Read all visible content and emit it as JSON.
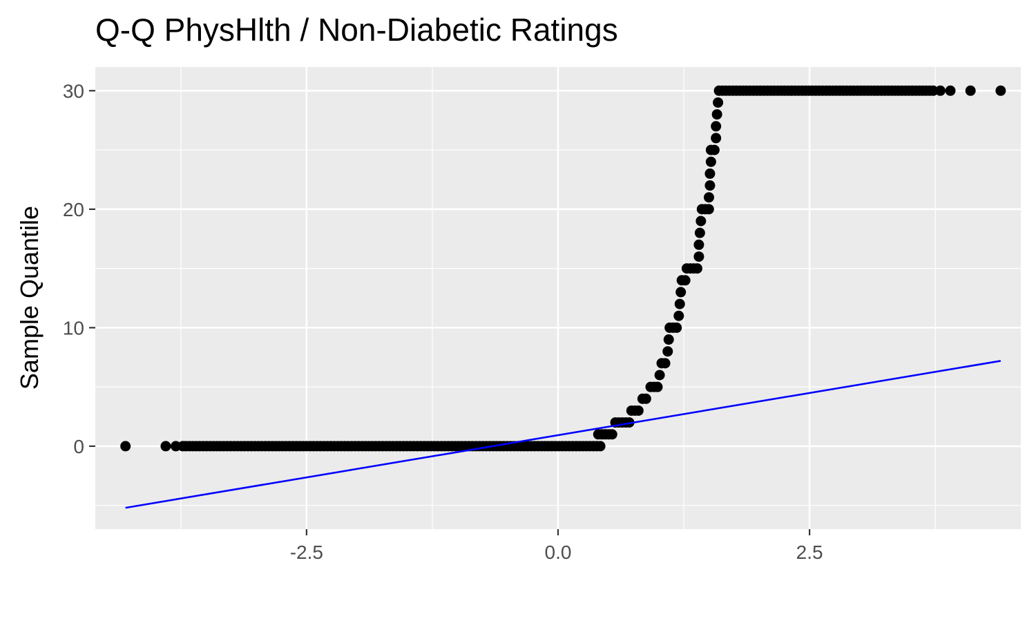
{
  "chart_data": {
    "type": "scatter",
    "title": "Q-Q PhysHlth / Non-Diabetic Ratings",
    "xlabel": "",
    "ylabel": "Sample Quantile",
    "xlim": [
      -4.6,
      4.6
    ],
    "ylim": [
      -7,
      32
    ],
    "x_ticks": [
      -2.5,
      0.0,
      2.5
    ],
    "x_tick_labels": [
      "-2.5",
      "0.0",
      "2.5"
    ],
    "y_ticks": [
      0,
      10,
      20,
      30
    ],
    "y_tick_labels": [
      "0",
      "10",
      "20",
      "30"
    ],
    "grid": true,
    "background": "#ebebeb",
    "point_color": "#000000",
    "line_color": "#0000ff",
    "series": [
      {
        "kind": "points",
        "runs": [
          {
            "y": 0,
            "x": [
              -4.3,
              -3.9,
              -3.8,
              -3.73
            ],
            "x_from": -3.7,
            "x_to": 0.43
          },
          {
            "y": 1,
            "x_from": 0.4,
            "x_to": 0.55
          },
          {
            "y": 2,
            "x_from": 0.57,
            "x_to": 0.72
          },
          {
            "y": 3,
            "x_from": 0.73,
            "x_to": 0.83
          },
          {
            "y": 4,
            "x_from": 0.84,
            "x_to": 0.9
          },
          {
            "y": 5,
            "x_from": 0.92,
            "x_to": 1.0
          },
          {
            "y": 6,
            "x_from": 1.01,
            "x_to": 1.02
          },
          {
            "y": 7,
            "x_from": 1.03,
            "x_to": 1.08
          },
          {
            "y": 8,
            "x_from": 1.09,
            "x_to": 1.09
          },
          {
            "y": 9,
            "x_from": 1.1,
            "x_to": 1.1
          },
          {
            "y": 10,
            "x_from": 1.11,
            "x_to": 1.19
          },
          {
            "y": 11,
            "x_from": 1.2,
            "x_to": 1.2
          },
          {
            "y": 12,
            "x_from": 1.21,
            "x_to": 1.21
          },
          {
            "y": 13,
            "x_from": 1.22,
            "x_to": 1.22
          },
          {
            "y": 14,
            "x_from": 1.23,
            "x_to": 1.27
          },
          {
            "y": 15,
            "x_from": 1.28,
            "x_to": 1.39
          },
          {
            "y": 16,
            "x_from": 1.4,
            "x_to": 1.4
          },
          {
            "y": 17,
            "x_from": 1.4,
            "x_to": 1.41
          },
          {
            "y": 18,
            "x_from": 1.41,
            "x_to": 1.41
          },
          {
            "y": 19,
            "x_from": 1.42,
            "x_to": 1.42
          },
          {
            "y": 20,
            "x_from": 1.43,
            "x_to": 1.5
          },
          {
            "y": 21,
            "x_from": 1.5,
            "x_to": 1.5
          },
          {
            "y": 22,
            "x_from": 1.51,
            "x_to": 1.51
          },
          {
            "y": 23,
            "x_from": 1.51,
            "x_to": 1.51
          },
          {
            "y": 24,
            "x_from": 1.52,
            "x_to": 1.52
          },
          {
            "y": 25,
            "x_from": 1.52,
            "x_to": 1.57
          },
          {
            "y": 26,
            "x_from": 1.57,
            "x_to": 1.57
          },
          {
            "y": 27,
            "x_from": 1.57,
            "x_to": 1.57
          },
          {
            "y": 28,
            "x_from": 1.58,
            "x_to": 1.58
          },
          {
            "y": 29,
            "x_from": 1.59,
            "x_to": 1.59
          },
          {
            "y": 30,
            "x_from": 1.6,
            "x_to": 3.73,
            "x": [
              3.8,
              3.9,
              4.1,
              4.4
            ]
          }
        ]
      },
      {
        "kind": "reference-line",
        "x": [
          -4.3,
          4.4
        ],
        "y": [
          -5.2,
          7.2
        ]
      }
    ]
  }
}
